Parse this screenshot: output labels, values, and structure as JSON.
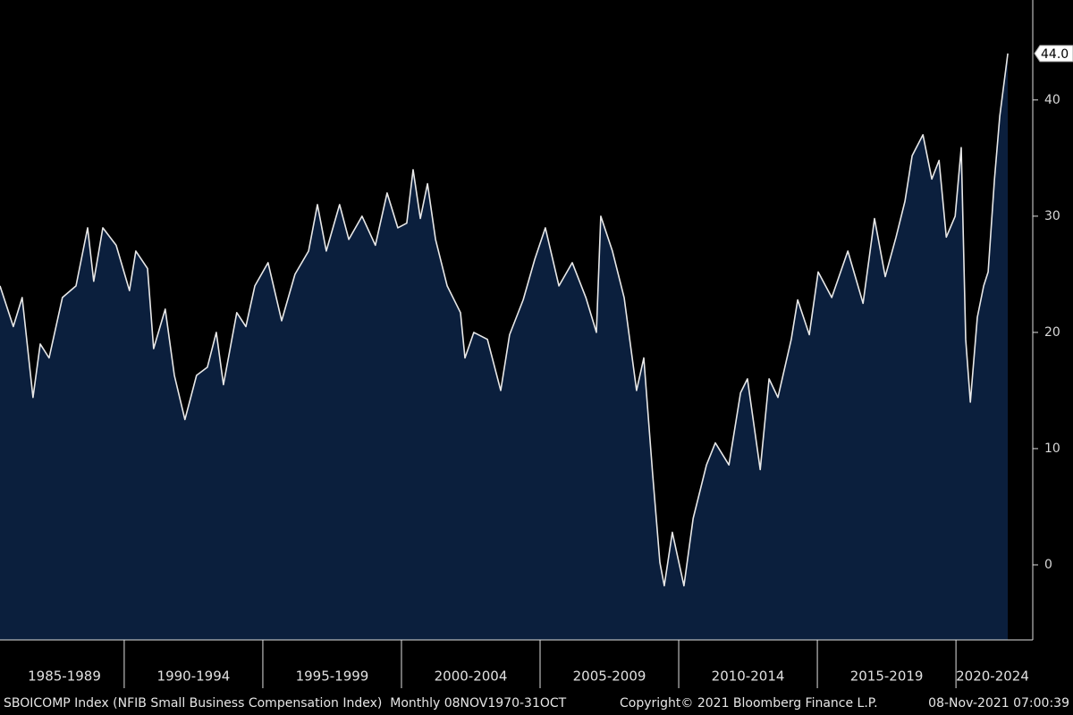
{
  "chart_data": {
    "type": "area",
    "x": [
      1985.52,
      1986.0,
      1986.32,
      1986.71,
      1986.97,
      1987.29,
      1987.77,
      1988.26,
      1988.68,
      1988.9,
      1989.23,
      1989.71,
      1990.19,
      1990.42,
      1990.84,
      1991.06,
      1991.48,
      1991.81,
      1992.19,
      1992.61,
      1993.0,
      1993.32,
      1993.58,
      1994.06,
      1994.39,
      1994.71,
      1995.19,
      1995.68,
      1996.16,
      1996.65,
      1996.97,
      1997.29,
      1997.77,
      1998.1,
      1998.58,
      1999.06,
      1999.48,
      1999.87,
      2000.19,
      2000.42,
      2000.68,
      2000.94,
      2001.23,
      2001.65,
      2002.13,
      2002.29,
      2002.61,
      2003.1,
      2003.58,
      2003.9,
      2004.39,
      2004.81,
      2005.19,
      2005.68,
      2006.16,
      2006.65,
      2007.03,
      2007.19,
      2007.61,
      2008.03,
      2008.48,
      2008.74,
      2009.06,
      2009.32,
      2009.48,
      2009.77,
      2010.19,
      2010.52,
      2011.0,
      2011.32,
      2011.81,
      2012.23,
      2012.48,
      2012.94,
      2013.26,
      2013.58,
      2014.06,
      2014.29,
      2014.71,
      2015.03,
      2015.52,
      2016.1,
      2016.65,
      2017.06,
      2017.45,
      2017.84,
      2018.16,
      2018.42,
      2018.81,
      2019.13,
      2019.39,
      2019.65,
      2019.97,
      2020.19,
      2020.35,
      2020.52,
      2020.77,
      2021.0,
      2021.16,
      2021.39,
      2021.58,
      2021.87
    ],
    "series": [
      {
        "name": "SBOICOMP Index",
        "color": "#e8e8e8",
        "fill": "#0b1f3d",
        "values": [
          24,
          20.5,
          23,
          14.4,
          19,
          17.8,
          23,
          24,
          29,
          24.4,
          29,
          27.5,
          23.6,
          27,
          25.5,
          18.6,
          22,
          16.3,
          12.5,
          16.3,
          17,
          20,
          15.5,
          21.7,
          20.5,
          24,
          26,
          21,
          25,
          27,
          31,
          27,
          31,
          28,
          30,
          27.5,
          32,
          29,
          29.4,
          34,
          29.8,
          32.8,
          28,
          24,
          21.7,
          17.8,
          20,
          19.4,
          15,
          19.8,
          22.8,
          26.3,
          29,
          24,
          26,
          23,
          20,
          30,
          27,
          23,
          15,
          17.8,
          7.8,
          0.2,
          -1.8,
          2.8,
          -1.8,
          4,
          8.6,
          10.5,
          8.6,
          14.8,
          16,
          8.2,
          16,
          14.4,
          19.4,
          22.8,
          19.8,
          25.2,
          23,
          27,
          22.5,
          29.8,
          24.8,
          28.2,
          31.3,
          35.2,
          37,
          33.2,
          34.8,
          28.2,
          30,
          35.9,
          19.4,
          14,
          21.3,
          24,
          25.2,
          33.2,
          38.6,
          44
        ]
      }
    ],
    "last_value": {
      "value": 44,
      "label": "44.0"
    },
    "xlim": [
      1985.52,
      2022.77
    ],
    "ylim": [
      -6.46,
      48.6
    ],
    "yticks": [
      0,
      10,
      20,
      30,
      40
    ],
    "x_periods": [
      {
        "label": "1985-1989",
        "start": 1985,
        "end": 1990
      },
      {
        "label": "1990-1994",
        "start": 1990,
        "end": 1995
      },
      {
        "label": "1995-1999",
        "start": 1995,
        "end": 2000
      },
      {
        "label": "2000-2004",
        "start": 2000,
        "end": 2005
      },
      {
        "label": "2005-2009",
        "start": 2005,
        "end": 2010
      },
      {
        "label": "2010-2014",
        "start": 2010,
        "end": 2015
      },
      {
        "label": "2015-2019",
        "start": 2015,
        "end": 2020
      },
      {
        "label": "2020-2024",
        "start": 2020,
        "end": 2025
      }
    ],
    "footer": {
      "left": "SBOICOMP Index (NFIB Small Business Compensation Index)  Monthly 08NOV1970-31OCT",
      "center": "Copyright© 2021 Bloomberg Finance L.P.",
      "right": "08-Nov-2021 07:00:39"
    }
  }
}
